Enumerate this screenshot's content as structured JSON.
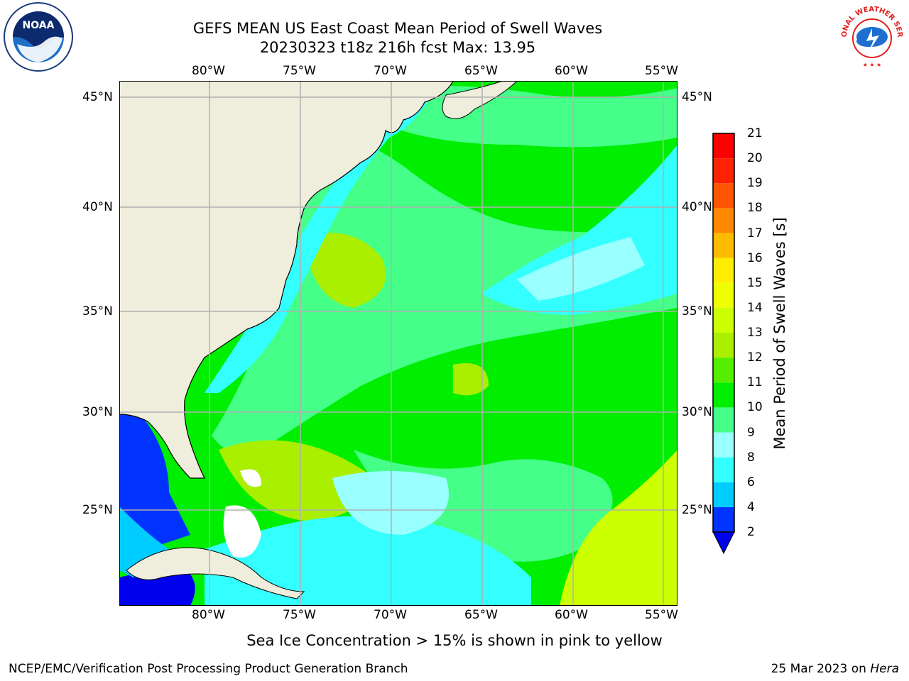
{
  "title": {
    "line1": "GEFS MEAN US East Coast Mean Period of Swell Waves",
    "line2": "20230323 t18z 216h fcst   Max: 13.95"
  },
  "logos": {
    "left": "noaa-logo",
    "right": "national-weather-service-logo",
    "left_text": "NOAA",
    "right_text": "NATIONAL WEATHER SERVICE"
  },
  "lon_labels": [
    "80°W",
    "75°W",
    "70°W",
    "65°W",
    "60°W",
    "55°W"
  ],
  "lat_labels": [
    "45°N",
    "40°N",
    "35°N",
    "30°N",
    "25°N"
  ],
  "colorbar": {
    "label": "Mean Period of Swell Waves [s]",
    "ticks": [
      "2",
      "4",
      "6",
      "8",
      "9",
      "10",
      "11",
      "12",
      "13",
      "14",
      "15",
      "16",
      "17",
      "18",
      "19",
      "20",
      "21"
    ],
    "colors": [
      "#0033ff",
      "#00ccff",
      "#33ffff",
      "#99ffff",
      "#44ff88",
      "#00ee00",
      "#55ee00",
      "#aaee00",
      "#ccff00",
      "#eeff00",
      "#ffee00",
      "#ffbb00",
      "#ff8800",
      "#ff5500",
      "#ff2200",
      "#ff0000"
    ],
    "under_color": "#0000ee"
  },
  "caption": "Sea Ice Concentration > 15% is shown in pink to yellow",
  "footer": {
    "left": "NCEP/EMC/Verification Post Processing Product Generation Branch",
    "right_date": "25 Mar 2023 on ",
    "right_host": "Hera"
  },
  "colors": {
    "land": "#efeddb",
    "grid": "#b0b0b0",
    "coast": "#000000"
  }
}
